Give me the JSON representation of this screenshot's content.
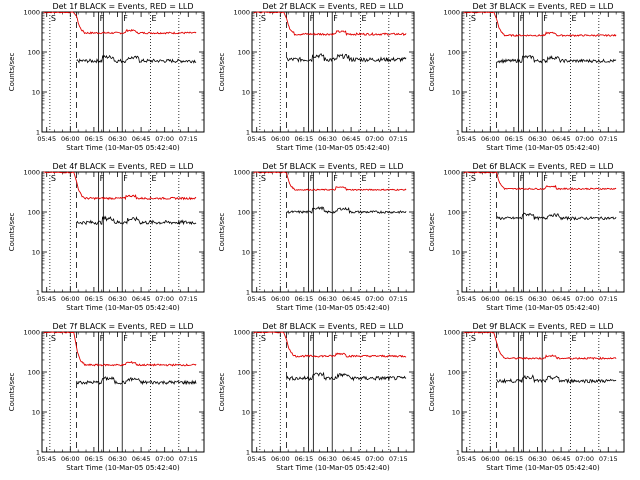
{
  "chart_data": [
    {
      "type": "line",
      "title": "Det 1f BLACK = Events, RED = LLD",
      "lld_start_y": 1000,
      "lld_level": 300,
      "events_level": 60,
      "events_start_x": "06:04",
      "noise": 0.1
    },
    {
      "type": "line",
      "title": "Det 2f BLACK = Events, RED = LLD",
      "lld_start_y": 1000,
      "lld_level": 280,
      "events_level": 65,
      "events_start_x": "06:04",
      "noise": 0.12
    },
    {
      "type": "line",
      "title": "Det 3f BLACK = Events, RED = LLD",
      "lld_start_y": 1000,
      "lld_level": 260,
      "events_level": 60,
      "events_start_x": "06:04",
      "noise": 0.09
    },
    {
      "type": "line",
      "title": "Det 4f BLACK = Events, RED = LLD",
      "lld_start_y": 1000,
      "lld_level": 220,
      "events_level": 55,
      "events_start_x": "06:04",
      "noise": 0.11
    },
    {
      "type": "line",
      "title": "Det 5f BLACK = Events, RED = LLD",
      "lld_start_y": 1000,
      "lld_level": 360,
      "events_level": 100,
      "events_start_x": "06:04",
      "noise": 0.07
    },
    {
      "type": "line",
      "title": "Det 6f BLACK = Events, RED = LLD",
      "lld_start_y": 1000,
      "lld_level": 380,
      "events_level": 70,
      "events_start_x": "06:04",
      "noise": 0.08
    },
    {
      "type": "line",
      "title": "Det 7f BLACK = Events, RED = LLD",
      "lld_start_y": 1000,
      "lld_level": 150,
      "events_level": 55,
      "events_start_x": "06:04",
      "noise": 0.1
    },
    {
      "type": "line",
      "title": "Det 8f BLACK = Events, RED = LLD",
      "lld_start_y": 1000,
      "lld_level": 250,
      "events_level": 70,
      "events_start_x": "06:04",
      "noise": 0.11
    },
    {
      "type": "line",
      "title": "Det 9f BLACK = Events, RED = LLD",
      "lld_start_y": 1000,
      "lld_level": 220,
      "events_level": 60,
      "events_start_x": "06:04",
      "noise": 0.1
    }
  ],
  "common": {
    "x_ticks": [
      "05:45",
      "06:00",
      "06:15",
      "06:30",
      "06:45",
      "07:00",
      "07:15"
    ],
    "y_ticks": [
      "1",
      "10",
      "100",
      "1000"
    ],
    "ylabel": "Counts/sec",
    "xlabel": "Start Time (10-Mar-05 05:42:40)",
    "flag_labels": [
      "S",
      "F",
      "F",
      "E"
    ],
    "series_colors": {
      "events": "#000000",
      "lld": "#e00000"
    }
  }
}
